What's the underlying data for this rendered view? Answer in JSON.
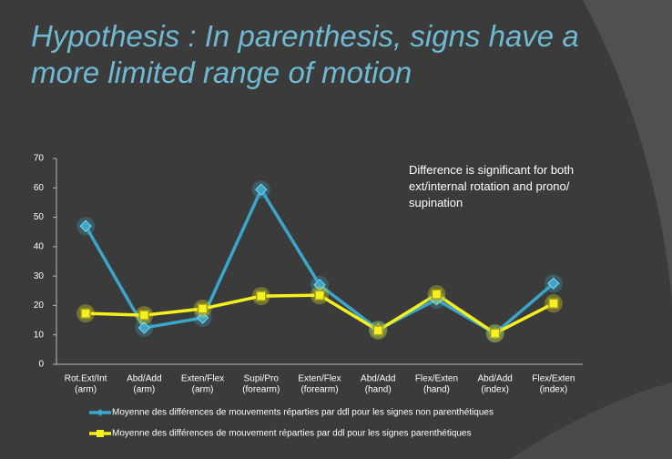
{
  "chart_data": {
    "type": "line",
    "title": "Hypothesis : In parenthesis, signs have a more limited range of motion",
    "annotation": "Difference is significant for both ext/internal rotation and prono/ supination",
    "categories": [
      [
        "Rot.Ext/Int",
        "(arm)"
      ],
      [
        "Abd/Add",
        "(arm)"
      ],
      [
        "Exten/Flex",
        "(arm)"
      ],
      [
        "Supi/Pro",
        "(forearm)"
      ],
      [
        "Exten/Flex",
        "(forearm)"
      ],
      [
        "Abd/Add",
        "(hand)"
      ],
      [
        "Flex/Exten",
        "(hand)"
      ],
      [
        "Abd/Add",
        "(index)"
      ],
      [
        "Flex/Exten",
        "(index)"
      ]
    ],
    "series": [
      {
        "name": "Moyenne des différences de mouvements réparties par ddl pour les signes non parenthétiques",
        "color": "#3aa6c9",
        "marker": "diamond",
        "values": [
          47,
          12.4,
          15.8,
          59.4,
          27,
          11.8,
          22,
          10.5,
          27.5
        ]
      },
      {
        "name": "Moyenne des différences de mouvement réparties par ddl pour les signes parenthétiques",
        "color": "#f5f01e",
        "marker": "square",
        "values": [
          17.3,
          16.7,
          18.9,
          23.2,
          23.5,
          11.5,
          23.8,
          10.5,
          20.7
        ]
      }
    ],
    "ylim": [
      0,
      70
    ],
    "yticks": [
      0,
      10,
      20,
      30,
      40,
      50,
      60,
      70
    ],
    "grid": false,
    "legend": "bottom"
  }
}
